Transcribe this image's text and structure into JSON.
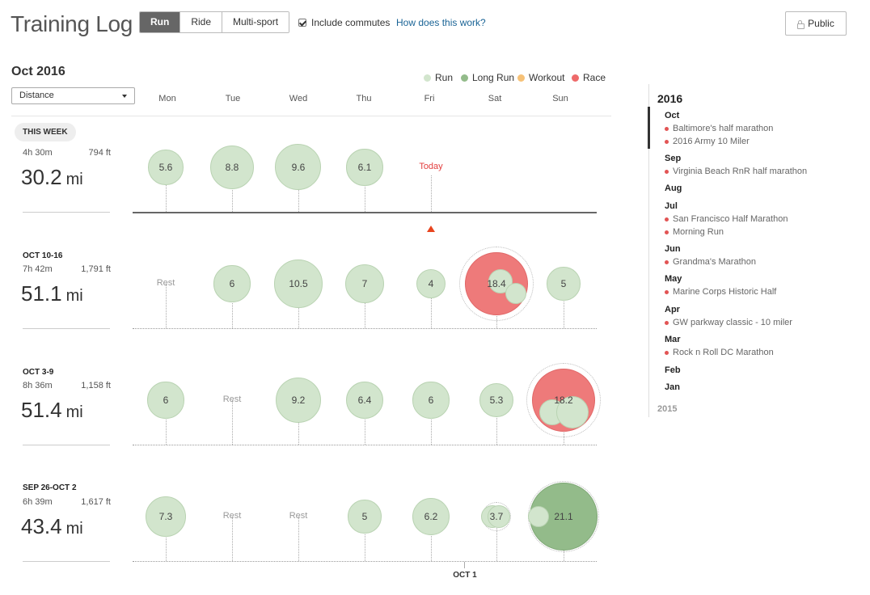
{
  "header": {
    "title": "Training Log",
    "sport_tabs": [
      {
        "label": "Run"
      },
      {
        "label": "Ride"
      },
      {
        "label": "Multi-sport"
      }
    ],
    "active_sport": "Run",
    "include_commutes_label": "Include commutes",
    "include_commutes_checked": true,
    "how_link": "How does this work?",
    "public_label": "Public"
  },
  "calendar": {
    "month_title": "Oct 2016",
    "metric_select": "Distance",
    "legend": [
      {
        "label": "Run",
        "color": "#d2e5cd"
      },
      {
        "label": "Long Run",
        "color": "#93bb8a"
      },
      {
        "label": "Workout",
        "color": "#f6c177"
      },
      {
        "label": "Race",
        "color": "#ee6a6a"
      }
    ],
    "days": [
      "Mon",
      "Tue",
      "Wed",
      "Thu",
      "Fri",
      "Sat",
      "Sun"
    ],
    "this_week_badge": "THIS WEEK",
    "rest_label": "Rest",
    "today_label": "Today",
    "oct1_label": "OCT 1",
    "unit": "mi",
    "weeks": [
      {
        "label": "",
        "time": "4h 30m",
        "elev": "794 ft",
        "dist": "30.2",
        "days": [
          {
            "type": "run",
            "value": "5.6"
          },
          {
            "type": "run",
            "value": "8.8"
          },
          {
            "type": "run",
            "value": "9.6"
          },
          {
            "type": "run",
            "value": "6.1"
          },
          {
            "type": "today"
          },
          {
            "type": "none"
          },
          {
            "type": "none"
          }
        ]
      },
      {
        "label": "OCT 10-16",
        "time": "7h 42m",
        "elev": "1,791 ft",
        "dist": "51.1",
        "days": [
          {
            "type": "rest"
          },
          {
            "type": "run",
            "value": "6"
          },
          {
            "type": "run",
            "value": "10.5"
          },
          {
            "type": "run",
            "value": "7"
          },
          {
            "type": "run",
            "value": "4"
          },
          {
            "type": "race",
            "value": "18.4"
          },
          {
            "type": "run",
            "value": "5"
          }
        ]
      },
      {
        "label": "OCT 3-9",
        "time": "8h 36m",
        "elev": "1,158 ft",
        "dist": "51.4",
        "days": [
          {
            "type": "run",
            "value": "6"
          },
          {
            "type": "rest"
          },
          {
            "type": "run",
            "value": "9.2"
          },
          {
            "type": "run",
            "value": "6.4"
          },
          {
            "type": "run",
            "value": "6"
          },
          {
            "type": "run",
            "value": "5.3"
          },
          {
            "type": "race",
            "value": "18.2"
          }
        ]
      },
      {
        "label": "SEP 26-OCT 2",
        "time": "6h 39m",
        "elev": "1,617 ft",
        "dist": "43.4",
        "days": [
          {
            "type": "run",
            "value": "7.3"
          },
          {
            "type": "rest"
          },
          {
            "type": "rest"
          },
          {
            "type": "run",
            "value": "5"
          },
          {
            "type": "run",
            "value": "6.2"
          },
          {
            "type": "run",
            "value": "3.7"
          },
          {
            "type": "long",
            "value": "21.1"
          }
        ]
      }
    ]
  },
  "sidebar": {
    "year": "2016",
    "prev_year": "2015",
    "months": [
      {
        "name": "Oct",
        "races": [
          "Baltimore's half marathon",
          "2016 Army 10 Miler"
        ]
      },
      {
        "name": "Sep",
        "races": [
          "Virginia Beach RnR half marathon"
        ]
      },
      {
        "name": "Aug",
        "races": []
      },
      {
        "name": "Jul",
        "races": [
          "San Francisco Half Marathon",
          "Morning Run"
        ]
      },
      {
        "name": "Jun",
        "races": [
          "Grandma's Marathon"
        ]
      },
      {
        "name": "May",
        "races": [
          "Marine Corps Historic Half"
        ]
      },
      {
        "name": "Apr",
        "races": [
          "GW parkway classic - 10 miler"
        ]
      },
      {
        "name": "Mar",
        "races": [
          "Rock n Roll DC Marathon"
        ]
      },
      {
        "name": "Feb",
        "races": []
      },
      {
        "name": "Jan",
        "races": []
      }
    ]
  }
}
